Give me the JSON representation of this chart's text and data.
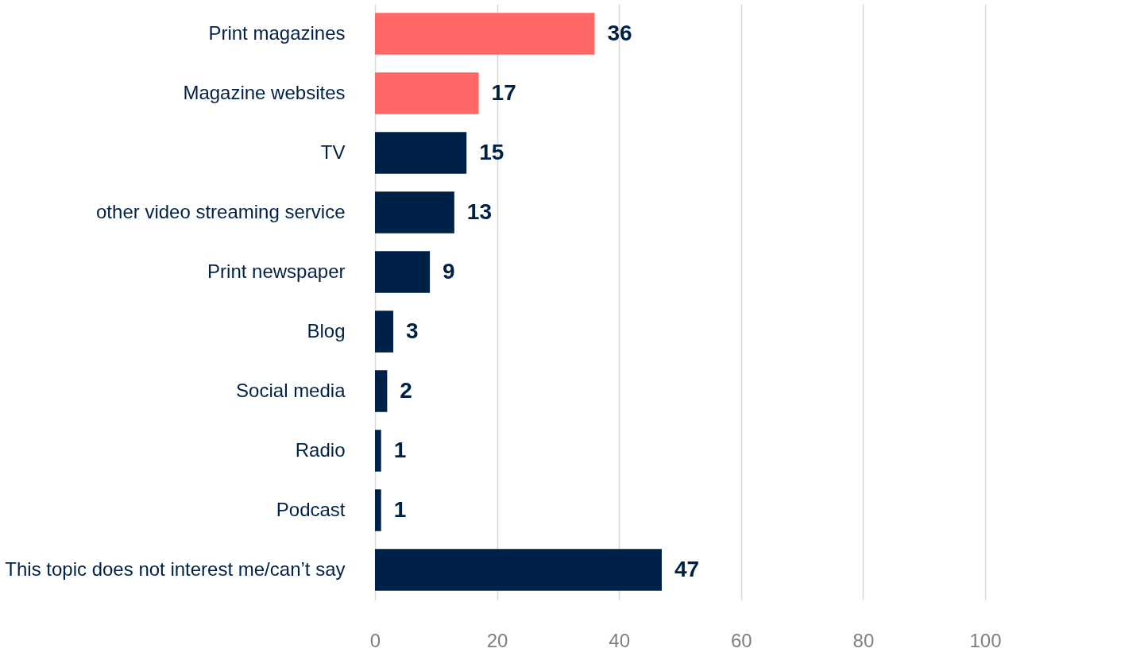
{
  "chart_data": {
    "type": "bar",
    "orientation": "horizontal",
    "categories": [
      "Print magazines",
      "Magazine websites",
      "TV",
      "other video streaming service",
      "Print newspaper",
      "Blog",
      "Social media",
      "Radio",
      "Podcast",
      "This topic does not interest me/can’t say"
    ],
    "values": [
      36,
      17,
      15,
      13,
      9,
      3,
      2,
      1,
      1,
      47
    ],
    "colors": [
      "#ff6666",
      "#ff6666",
      "#002147",
      "#002147",
      "#002147",
      "#002147",
      "#002147",
      "#002147",
      "#002147",
      "#002147"
    ],
    "xlim": [
      0,
      100
    ],
    "xticks": [
      0,
      20,
      40,
      60,
      80,
      100
    ],
    "grid": "x",
    "data_labels": true
  }
}
